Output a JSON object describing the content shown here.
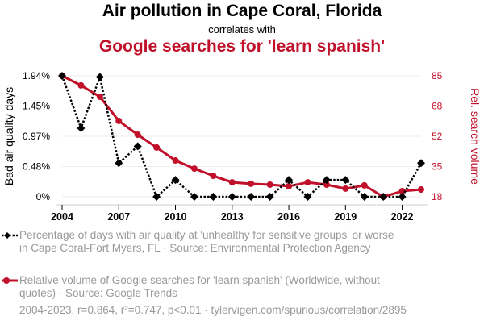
{
  "title": "Air pollution in Cape Coral, Florida",
  "subtitle": "correlates with",
  "title2": "Google searches for 'learn spanish'",
  "footer": "2004-2023, r=0.864, r²=0.747, p<0.01 · tylervigen.com/spurious/correlation/2895",
  "colors": {
    "series1": "#000000",
    "series2": "#c0102a"
  },
  "chart_data": {
    "type": "line",
    "x": [
      2004,
      2005,
      2006,
      2007,
      2008,
      2009,
      2010,
      2011,
      2012,
      2013,
      2014,
      2015,
      2016,
      2017,
      2018,
      2019,
      2020,
      2021,
      2022,
      2023
    ],
    "xticks": [
      "2004",
      "2007",
      "2010",
      "2013",
      "2016",
      "2019",
      "2022"
    ],
    "ylabel": "Bad air quality days",
    "y2label": "Rel. search volume",
    "yticks": [
      "0%",
      "0.48%",
      "0.97%",
      "1.45%",
      "1.94%"
    ],
    "y2ticks": [
      "18",
      "35",
      "52",
      "68",
      "85"
    ],
    "ylim": [
      0,
      1.94
    ],
    "y2lim": [
      18,
      85
    ],
    "series": [
      {
        "name": "Percentage of days with air quality at 'unhealthy for sensitive groups' or worse in Cape Coral-Fort Myers, FL · Source: Environmental Protection Agency",
        "axis": "left",
        "values": [
          1.94,
          1.1,
          1.92,
          0.54,
          0.81,
          0,
          0.27,
          0,
          0,
          0,
          0,
          0,
          0.27,
          0,
          0.27,
          0.27,
          0,
          0,
          0,
          0.54
        ]
      },
      {
        "name": "Relative volume of Google searches for 'learn spanish' (Worldwide, without quotes) · Source: Google Trends",
        "axis": "right",
        "values": [
          85,
          79.7,
          73.4,
          60,
          52.4,
          45.3,
          38.1,
          33.6,
          29.6,
          26,
          25.2,
          24.7,
          23.8,
          26,
          24.7,
          22.5,
          24.3,
          18,
          21.1,
          22
        ]
      }
    ]
  }
}
